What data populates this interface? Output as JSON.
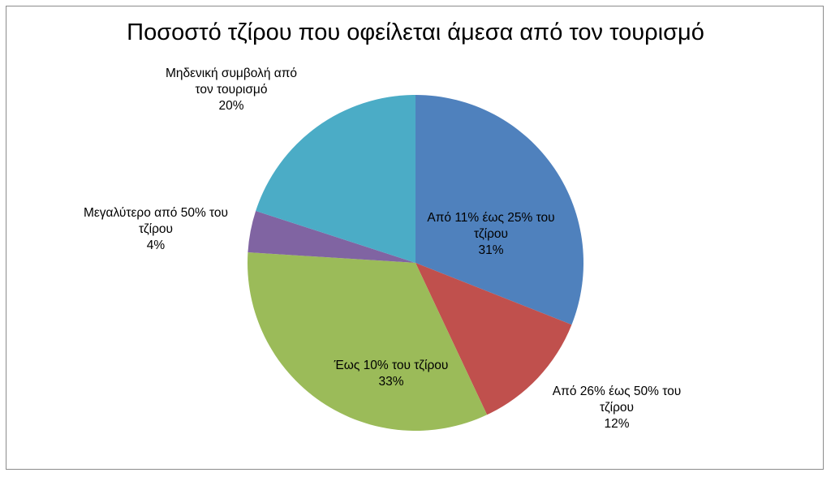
{
  "chart_data": {
    "type": "pie",
    "title": "Ποσοστό τζίρου που οφείλεται άμεσα από τον τουρισμό",
    "categories": [
      "Από 11% έως 25% του τζίρου",
      "Από 26% έως 50% του τζίρου",
      "Έως 10% του τζίρου",
      "Μεγαλύτερο από 50% του τζίρου",
      "Μηδενική συμβολή από τον τουρισμό"
    ],
    "values": [
      31,
      12,
      33,
      4,
      20
    ],
    "value_labels": [
      "31%",
      "12%",
      "33%",
      "4%",
      "20%"
    ],
    "label_lines": [
      [
        "Από 11% έως 25% του",
        "τζίρου"
      ],
      [
        "Από 26% έως 50% του",
        "τζίρου"
      ],
      [
        "Έως 10% του τζίρου"
      ],
      [
        "Μεγαλύτερο από 50% του",
        "τζίρου"
      ],
      [
        "Μηδενική συμβολή από",
        "τον τουρισμό"
      ]
    ],
    "colors": [
      "#4f81bd",
      "#c0504d",
      "#9bbb59",
      "#8064a2",
      "#4bacc6"
    ],
    "legend": "none",
    "start_angle": "12 o'clock, clockwise"
  }
}
